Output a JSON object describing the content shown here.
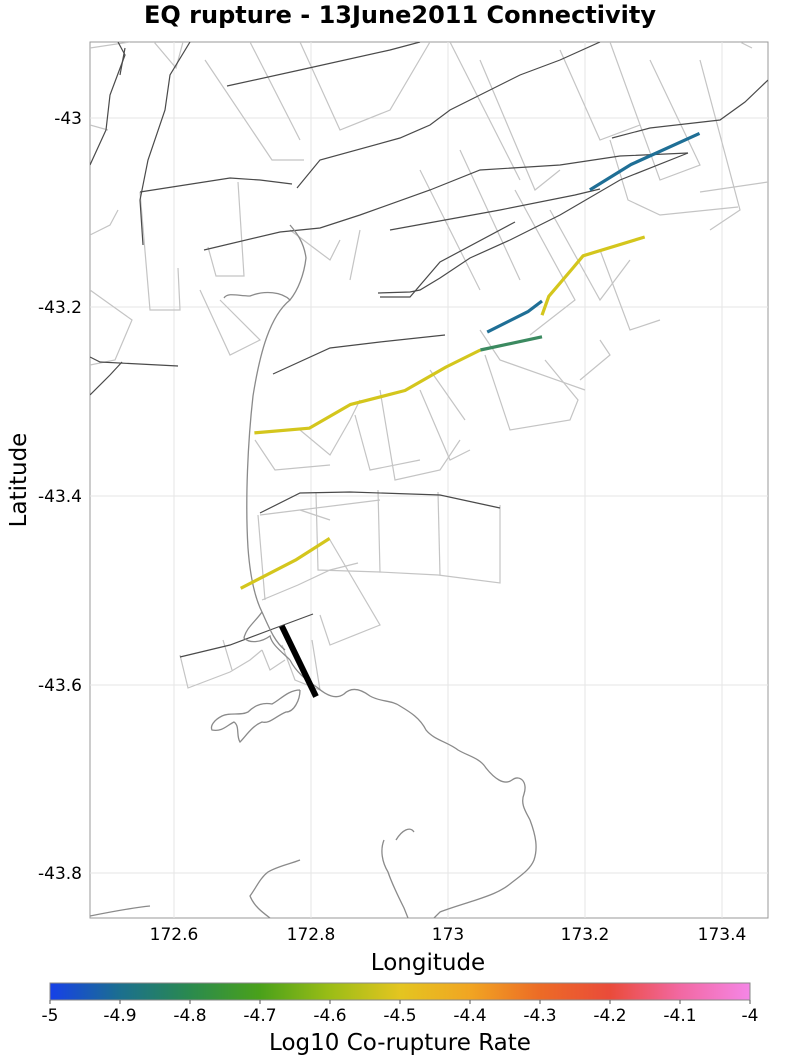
{
  "title": "EQ rupture - 13June2011 Connectivity",
  "x_axis": {
    "label": "Longitude",
    "ticks": [
      "172.6",
      "172.8",
      "173",
      "173.2",
      "173.4"
    ]
  },
  "y_axis": {
    "label": "Latitude",
    "ticks": [
      "-43",
      "-43.2",
      "-43.4",
      "-43.6",
      "-43.8"
    ]
  },
  "colorbar": {
    "label": "Log10 Co-rupture Rate",
    "ticks": [
      "-5",
      "-4.9",
      "-4.8",
      "-4.7",
      "-4.6",
      "-4.5",
      "-4.4",
      "-4.3",
      "-4.2",
      "-4.1",
      "-4"
    ],
    "colors": [
      "#1640e8",
      "#1b6f8f",
      "#2a8a4e",
      "#4aa11a",
      "#9bbd16",
      "#e4c520",
      "#f1a522",
      "#ec6b26",
      "#ea4b3a",
      "#f268a2",
      "#f586e6"
    ]
  },
  "chart_data": {
    "type": "map",
    "title": "EQ rupture - 13June2011 Connectivity",
    "xlabel": "Longitude",
    "ylabel": "Latitude",
    "xlim": [
      172.48,
      173.47
    ],
    "ylim": [
      -43.85,
      -42.92
    ],
    "rupture_sections": [
      {
        "name": "source",
        "log10_rate": null,
        "color": "#000000",
        "points": [
          [
            172.76,
            -43.54
          ],
          [
            172.81,
            -43.615
          ]
        ]
      },
      {
        "name": "yellow-southwest",
        "log10_rate": -4.55,
        "color": "#d4c61d",
        "points": [
          [
            172.7,
            -43.5
          ],
          [
            172.78,
            -43.47
          ],
          [
            172.83,
            -43.447
          ]
        ]
      },
      {
        "name": "yellow-central",
        "log10_rate": -4.55,
        "color": "#d4c61d",
        "points": [
          [
            172.72,
            -43.335
          ],
          [
            172.8,
            -43.33
          ],
          [
            172.86,
            -43.305
          ],
          [
            172.94,
            -43.29
          ],
          [
            173.0,
            -43.265
          ],
          [
            173.05,
            -43.247
          ]
        ]
      },
      {
        "name": "yellow-northeast",
        "log10_rate": -4.55,
        "color": "#d4c61d",
        "points": [
          [
            173.14,
            -43.21
          ],
          [
            173.15,
            -43.19
          ],
          [
            173.185,
            -43.16
          ],
          [
            173.2,
            -43.147
          ],
          [
            173.29,
            -43.127
          ]
        ]
      },
      {
        "name": "green-segment",
        "log10_rate": -4.8,
        "color": "#3b8a60",
        "points": [
          [
            173.05,
            -43.247
          ],
          [
            173.14,
            -43.233
          ]
        ]
      },
      {
        "name": "blue-central",
        "log10_rate": -4.9,
        "color": "#1f6f96",
        "points": [
          [
            173.06,
            -43.228
          ],
          [
            173.12,
            -43.206
          ],
          [
            173.14,
            -43.195
          ]
        ]
      },
      {
        "name": "blue-northeast",
        "log10_rate": -4.9,
        "color": "#1f6f96",
        "points": [
          [
            173.21,
            -43.077
          ],
          [
            173.27,
            -43.05
          ],
          [
            173.37,
            -43.017
          ]
        ]
      }
    ]
  }
}
